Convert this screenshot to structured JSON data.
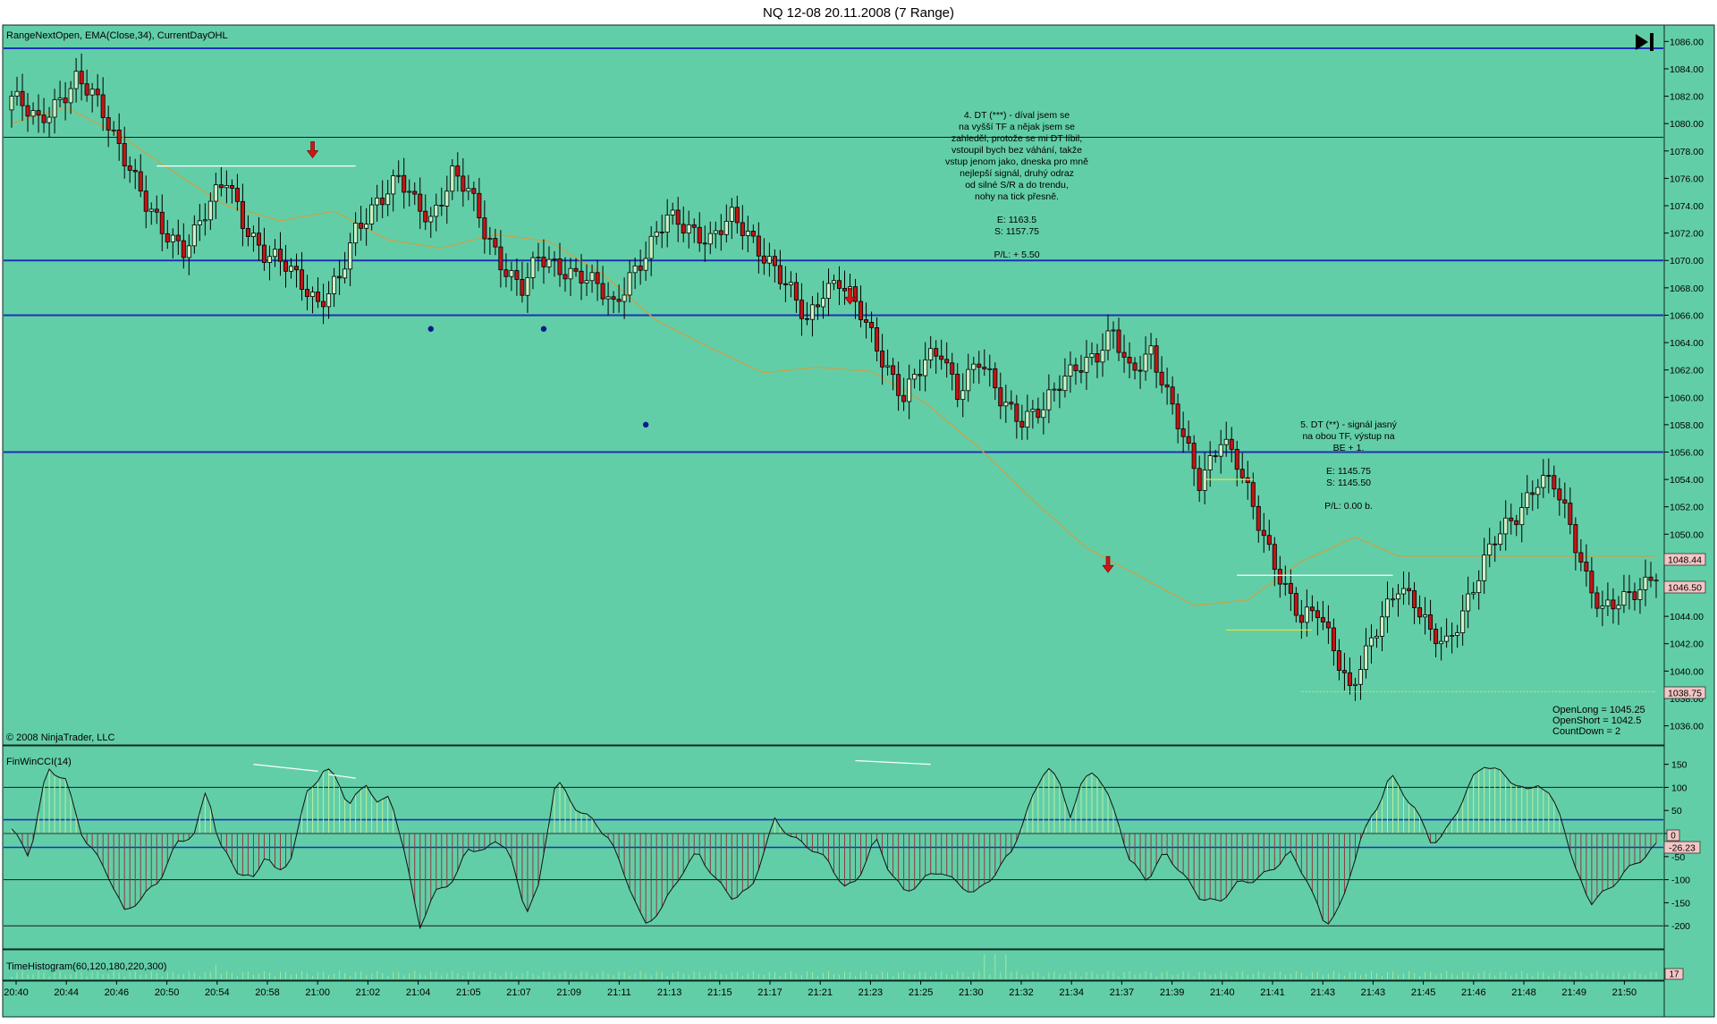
{
  "window": {
    "title": "NQ 12-08  20.11.2008 (7 Range)",
    "play_icon": "skip-to-end-icon"
  },
  "colors": {
    "background": "#62CEA8",
    "candle_up": "#C9F2C4",
    "candle_down": "#C31414",
    "ema": "#C9A24A",
    "level_line": "#1C32B4",
    "annotation_arrow": "#D41414",
    "cci_up_bar": "#B8F0A0",
    "cci_down_bar": "#8E3A3A",
    "text": "#000000"
  },
  "price_panel": {
    "indicator_label": "RangeNextOpen, EMA(Close,34), CurrentDayOHL",
    "copyright": "© 2008 NinjaTrader, LLC",
    "status": [
      "OpenLong = 1045.25",
      "OpenShort = 1042.5",
      "CountDown = 2"
    ],
    "price_markers": [
      "1048.44",
      "1046.50",
      "1038.75"
    ],
    "annotations": [
      {
        "lines": [
          "4. DT (***) - díval jsem se",
          "na vyšší TF a nějak jsem se",
          "zahleděl, protože se mi DT líbil,",
          "vstoupil bych bez váhání, takže",
          "vstup jenom jako, dneska pro mně",
          "nejlepší signál, druhý odraz",
          "od silné S/R a do trendu,",
          "nohy na tick přesně.",
          "",
          "E: 1163.5",
          "S: 1157.75",
          "",
          "P/L: + 5.50"
        ]
      },
      {
        "lines": [
          "5. DT (**) - signál jasný",
          "na obou TF, výstup na",
          "BE + 1.",
          "",
          "E: 1145.75",
          "S: 1145.50",
          "",
          "P/L: 0.00 b."
        ]
      }
    ]
  },
  "cci_panel": {
    "label": "FinWinCCI(14)",
    "marker": "0",
    "value": "-26.23"
  },
  "histogram_panel": {
    "label": "TimeHistogram(60,120,180,220,300)",
    "value": "17"
  },
  "chart_data": [
    {
      "type": "candlestick",
      "title": "NQ 12-08  20.11.2008 (7 Range)",
      "y_ticks": [
        "1036.00",
        "1038.00",
        "1040.00",
        "1042.00",
        "1044.00",
        "1046.00",
        "1048.00",
        "1050.00",
        "1052.00",
        "1054.00",
        "1056.00",
        "1058.00",
        "1060.00",
        "1062.00",
        "1064.00",
        "1066.00",
        "1068.00",
        "1070.00",
        "1072.00",
        "1074.00",
        "1076.00",
        "1078.00",
        "1080.00",
        "1082.00",
        "1084.00",
        "1086.00"
      ],
      "ylim": [
        1034.6,
        1087.2
      ],
      "x_ticks": [
        "20:40",
        "20:44",
        "20:46",
        "20:50",
        "20:54",
        "20:58",
        "21:00",
        "21:02",
        "21:04",
        "21:05",
        "21:07",
        "21:09",
        "21:11",
        "21:13",
        "21:15",
        "21:17",
        "21:21",
        "21:23",
        "21:25",
        "21:30",
        "21:32",
        "21:34",
        "21:37",
        "21:39",
        "21:40",
        "21:41",
        "21:43",
        "21:43",
        "21:45",
        "21:46",
        "21:48",
        "21:49",
        "21:50"
      ],
      "horizontal_levels": [
        1085.5,
        1070.0,
        1066.0,
        1056.0
      ],
      "thin_levels": [
        1079.0
      ],
      "ema_path": [
        [
          0,
          1080.0
        ],
        [
          10,
          1081.2
        ],
        [
          20,
          1079.2
        ],
        [
          30,
          1076.5
        ],
        [
          40,
          1074.0
        ],
        [
          50,
          1072.9
        ],
        [
          60,
          1073.6
        ],
        [
          70,
          1071.5
        ],
        [
          80,
          1070.9
        ],
        [
          90,
          1071.9
        ],
        [
          100,
          1071.4
        ],
        [
          110,
          1069.0
        ],
        [
          120,
          1065.6
        ],
        [
          130,
          1063.6
        ],
        [
          140,
          1061.8
        ],
        [
          150,
          1062.2
        ],
        [
          160,
          1061.9
        ],
        [
          170,
          1059.6
        ],
        [
          180,
          1056.3
        ],
        [
          190,
          1052.5
        ],
        [
          200,
          1049.0
        ],
        [
          210,
          1046.9
        ],
        [
          220,
          1044.8
        ],
        [
          230,
          1045.2
        ],
        [
          240,
          1048.0
        ],
        [
          250,
          1049.8
        ],
        [
          258,
          1048.4
        ]
      ],
      "close_path": [
        [
          0,
          1082.0
        ],
        [
          5,
          1080.0
        ],
        [
          8,
          1081.5
        ],
        [
          12,
          1083.2
        ],
        [
          15,
          1082.0
        ],
        [
          18,
          1080.0
        ],
        [
          22,
          1077.0
        ],
        [
          25,
          1074.0
        ],
        [
          28,
          1072.0
        ],
        [
          32,
          1071.0
        ],
        [
          36,
          1073.5
        ],
        [
          40,
          1075.8
        ],
        [
          43,
          1073.0
        ],
        [
          47,
          1070.5
        ],
        [
          51,
          1069.5
        ],
        [
          55,
          1068.0
        ],
        [
          57,
          1067.0
        ],
        [
          61,
          1068.5
        ],
        [
          64,
          1072.0
        ],
        [
          68,
          1074.5
        ],
        [
          72,
          1076.0
        ],
        [
          75,
          1074.0
        ],
        [
          78,
          1073.0
        ],
        [
          82,
          1076.5
        ],
        [
          85,
          1075.0
        ],
        [
          88,
          1072.0
        ],
        [
          91,
          1070.0
        ],
        [
          95,
          1068.0
        ],
        [
          98,
          1070.0
        ],
        [
          102,
          1069.5
        ],
        [
          106,
          1069.0
        ],
        [
          109,
          1068.0
        ],
        [
          112,
          1066.5
        ],
        [
          115,
          1069.0
        ],
        [
          118,
          1070.5
        ],
        [
          122,
          1073.0
        ],
        [
          126,
          1072.5
        ],
        [
          130,
          1071.5
        ],
        [
          134,
          1073.0
        ],
        [
          137,
          1072.0
        ],
        [
          141,
          1070.0
        ],
        [
          145,
          1067.5
        ],
        [
          148,
          1065.5
        ],
        [
          151,
          1068.0
        ],
        [
          154,
          1068.5
        ],
        [
          158,
          1066.0
        ],
        [
          162,
          1063.0
        ],
        [
          166,
          1060.0
        ],
        [
          170,
          1062.5
        ],
        [
          173,
          1063.5
        ],
        [
          176,
          1060.5
        ],
        [
          180,
          1062.5
        ],
        [
          184,
          1060.0
        ],
        [
          188,
          1058.5
        ],
        [
          192,
          1059.0
        ],
        [
          195,
          1061.0
        ],
        [
          198,
          1062.5
        ],
        [
          202,
          1063.0
        ],
        [
          205,
          1064.5
        ],
        [
          208,
          1062.0
        ],
        [
          212,
          1063.5
        ],
        [
          215,
          1060.0
        ],
        [
          218,
          1057.0
        ],
        [
          221,
          1054.0
        ],
        [
          225,
          1057.0
        ],
        [
          228,
          1055.0
        ],
        [
          231,
          1052.0
        ],
        [
          234,
          1049.0
        ],
        [
          237,
          1046.0
        ],
        [
          240,
          1043.5
        ],
        [
          243,
          1044.5
        ],
        [
          246,
          1042.0
        ],
        [
          249,
          1038.5
        ],
        [
          252,
          1041.0
        ],
        [
          255,
          1044.0
        ],
        [
          258,
          1046.5
        ],
        [
          261,
          1045.0
        ],
        [
          264,
          1042.5
        ],
        [
          267,
          1042.0
        ],
        [
          270,
          1044.5
        ],
        [
          273,
          1047.0
        ],
        [
          276,
          1049.5
        ],
        [
          280,
          1051.5
        ],
        [
          284,
          1054.0
        ],
        [
          287,
          1053.5
        ],
        [
          290,
          1050.5
        ],
        [
          293,
          1047.0
        ],
        [
          296,
          1044.5
        ],
        [
          300,
          1045.0
        ],
        [
          304,
          1046.5
        ],
        [
          306,
          1047.5
        ]
      ],
      "candle_count": 307,
      "signal_arrows": [
        [
          56,
          1077.5
        ],
        [
          156,
          1066.8
        ],
        [
          204,
          1047.2
        ]
      ],
      "dots": [
        [
          78,
          1065.0
        ],
        [
          99,
          1065.0
        ],
        [
          118,
          1058.0
        ]
      ],
      "white_lines": [
        [
          27,
          64,
          1076.9
        ],
        [
          228,
          257,
          1047.0
        ]
      ],
      "yellow_lines": [
        [
          164,
          1037.9,
          1038.0,
          257
        ],
        [
          182,
          1053.9
        ],
        [
          195,
          1043.0
        ]
      ]
    },
    {
      "type": "area",
      "title": "FinWinCCI(14)",
      "y_ticks": [
        "-200",
        "-150",
        "-100",
        "-50",
        "0",
        "50",
        "100",
        "150"
      ],
      "ylim": [
        -250,
        190
      ],
      "reference_lines": [
        100,
        30,
        -30,
        -100,
        -200
      ],
      "keypoints": [
        [
          0,
          10
        ],
        [
          3,
          -50
        ],
        [
          6,
          140
        ],
        [
          9,
          120
        ],
        [
          12,
          -5
        ],
        [
          16,
          -80
        ],
        [
          19,
          -170
        ],
        [
          22,
          -140
        ],
        [
          25,
          -100
        ],
        [
          28,
          -20
        ],
        [
          31,
          0
        ],
        [
          33,
          100
        ],
        [
          35,
          -20
        ],
        [
          38,
          -80
        ],
        [
          41,
          -100
        ],
        [
          43,
          -40
        ],
        [
          45,
          -90
        ],
        [
          47,
          -60
        ],
        [
          50,
          90
        ],
        [
          53,
          140
        ],
        [
          55,
          120
        ],
        [
          57,
          60
        ],
        [
          60,
          110
        ],
        [
          62,
          60
        ],
        [
          64,
          85
        ],
        [
          66,
          -20
        ],
        [
          69,
          -200
        ],
        [
          72,
          -120
        ],
        [
          75,
          -100
        ],
        [
          77,
          -30
        ],
        [
          80,
          -40
        ],
        [
          82,
          -10
        ],
        [
          84,
          -40
        ],
        [
          87,
          -170
        ],
        [
          89,
          -120
        ],
        [
          92,
          120
        ],
        [
          95,
          60
        ],
        [
          98,
          30
        ],
        [
          101,
          -10
        ],
        [
          104,
          -100
        ],
        [
          107,
          -200
        ],
        [
          110,
          -160
        ],
        [
          113,
          -90
        ],
        [
          116,
          -40
        ],
        [
          119,
          -100
        ],
        [
          122,
          -140
        ],
        [
          125,
          -120
        ],
        [
          129,
          30
        ],
        [
          132,
          -10
        ],
        [
          135,
          -30
        ],
        [
          138,
          -60
        ],
        [
          141,
          -120
        ],
        [
          143,
          -100
        ],
        [
          146,
          -10
        ],
        [
          148,
          -70
        ],
        [
          151,
          -130
        ],
        [
          154,
          -100
        ],
        [
          157,
          -80
        ],
        [
          160,
          -110
        ],
        [
          163,
          -130
        ],
        [
          166,
          -90
        ],
        [
          169,
          -40
        ],
        [
          172,
          60
        ],
        [
          175,
          150
        ],
        [
          177,
          110
        ],
        [
          179,
          40
        ],
        [
          181,
          110
        ],
        [
          183,
          140
        ],
        [
          185,
          90
        ],
        [
          187,
          30
        ],
        [
          189,
          -60
        ],
        [
          192,
          -100
        ],
        [
          195,
          -40
        ],
        [
          198,
          -90
        ],
        [
          201,
          -140
        ],
        [
          204,
          -150
        ],
        [
          207,
          -110
        ],
        [
          210,
          -100
        ],
        [
          213,
          -80
        ],
        [
          216,
          -40
        ],
        [
          219,
          -100
        ],
        [
          222,
          -200
        ],
        [
          225,
          -150
        ],
        [
          228,
          -10
        ],
        [
          231,
          60
        ],
        [
          233,
          130
        ],
        [
          235,
          90
        ],
        [
          237,
          60
        ],
        [
          240,
          -20
        ],
        [
          242,
          -5
        ],
        [
          244,
          40
        ],
        [
          247,
          120
        ],
        [
          249,
          150
        ],
        [
          252,
          130
        ],
        [
          254,
          110
        ],
        [
          256,
          90
        ],
        [
          258,
          110
        ],
        [
          260,
          80
        ],
        [
          262,
          40
        ],
        [
          264,
          -70
        ],
        [
          267,
          -150
        ],
        [
          270,
          -120
        ],
        [
          273,
          -80
        ],
        [
          276,
          -50
        ],
        [
          278,
          -26
        ]
      ]
    },
    {
      "type": "bar",
      "title": "TimeHistogram(60,120,180,220,300)",
      "value": "17"
    }
  ]
}
